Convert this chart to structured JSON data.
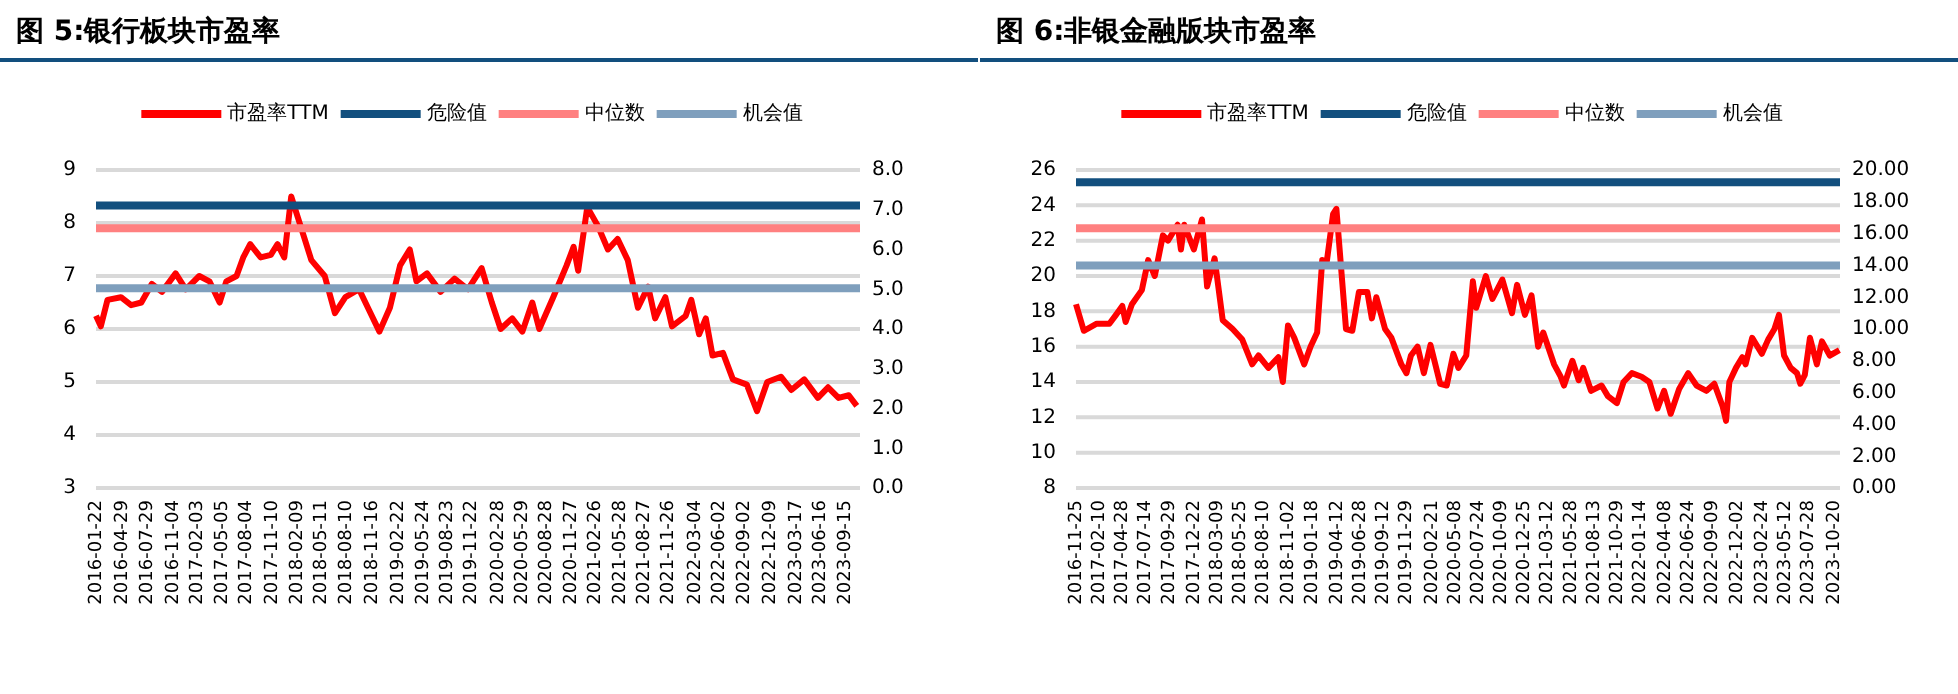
{
  "chart_data": [
    {
      "type": "line",
      "title": "图 5:银行板块市盈率",
      "grid": "y",
      "legend": "top",
      "xlim": [
        "2016-01-22",
        "2023-11-10"
      ],
      "xticks": [
        "2016-01-22",
        "2016-04-29",
        "2016-07-29",
        "2016-11-04",
        "2017-02-03",
        "2017-05-05",
        "2017-08-04",
        "2017-11-10",
        "2018-02-09",
        "2018-05-11",
        "2018-08-10",
        "2018-11-16",
        "2019-02-22",
        "2019-05-24",
        "2019-08-23",
        "2019-11-22",
        "2020-02-28",
        "2020-05-29",
        "2020-08-28",
        "2020-11-27",
        "2021-02-26",
        "2021-05-28",
        "2021-08-27",
        "2021-11-26",
        "2022-03-04",
        "2022-06-02",
        "2022-09-02",
        "2022-12-09",
        "2023-03-17",
        "2023-06-16",
        "2023-09-15"
      ],
      "ylim": [
        3,
        9
      ],
      "yticks": [
        3,
        4,
        5,
        6,
        7,
        8,
        9
      ],
      "y2lim": [
        0,
        8
      ],
      "y2ticks": [
        {
          "value": 0,
          "label": "0.0"
        },
        {
          "value": 1,
          "label": "1.0"
        },
        {
          "value": 2,
          "label": "2.0"
        },
        {
          "value": 3,
          "label": "3.0"
        },
        {
          "value": 4,
          "label": "4.0"
        },
        {
          "value": 5,
          "label": "5.0"
        },
        {
          "value": 6,
          "label": "6.0"
        },
        {
          "value": 7,
          "label": "7.0"
        },
        {
          "value": 8,
          "label": "8.0"
        }
      ],
      "ref_lines": [
        {
          "axis": "y",
          "value": 8.33,
          "label": "危险值",
          "color": "#124f7e"
        },
        {
          "axis": "y",
          "value": 7.9,
          "label": "中位数",
          "color": "#ff8080"
        },
        {
          "axis": "y",
          "value": 6.77,
          "label": "机会值",
          "color": "#7f9fbd"
        }
      ],
      "series": [
        {
          "name": "市盈率TTM",
          "color": "#ff0000",
          "x": [
            "2016-01-22",
            "2016-02-09",
            "2016-03-05",
            "2016-04-24",
            "2016-06-01",
            "2016-07-09",
            "2016-08-17",
            "2016-09-24",
            "2016-11-14",
            "2016-12-22",
            "2017-02-10",
            "2017-03-20",
            "2017-04-27",
            "2017-05-22",
            "2017-06-29",
            "2017-07-24",
            "2017-08-19",
            "2017-09-27",
            "2017-11-04",
            "2017-11-29",
            "2017-12-24",
            "2018-01-19",
            "2018-02-13",
            "2018-03-10",
            "2018-04-04",
            "2018-05-24",
            "2018-07-01",
            "2018-08-09",
            "2018-09-29",
            "2018-11-06",
            "2018-12-14",
            "2019-01-22",
            "2019-03-01",
            "2019-04-06",
            "2019-05-01",
            "2019-06-09",
            "2019-07-30",
            "2019-09-20",
            "2019-11-09",
            "2019-12-30",
            "2020-02-06",
            "2020-03-10",
            "2020-04-22",
            "2020-05-30",
            "2020-07-06",
            "2020-08-01",
            "2020-09-22",
            "2020-11-11",
            "2020-12-07",
            "2020-12-24",
            "2021-01-27",
            "2021-03-07",
            "2021-04-14",
            "2021-05-20",
            "2021-06-27",
            "2021-08-04",
            "2021-09-11",
            "2021-10-07",
            "2021-11-14",
            "2021-12-09",
            "2022-01-29",
            "2022-02-19",
            "2022-03-20",
            "2022-04-14",
            "2022-05-09",
            "2022-06-17",
            "2022-07-24",
            "2022-09-14",
            "2022-10-22",
            "2022-11-29",
            "2023-01-19",
            "2023-02-27",
            "2023-04-16",
            "2023-06-06",
            "2023-07-14",
            "2023-08-22",
            "2023-09-29",
            "2023-10-29"
          ],
          "values": [
            6.25,
            6.05,
            6.55,
            6.6,
            6.45,
            6.5,
            6.85,
            6.7,
            7.05,
            6.75,
            7.0,
            6.9,
            6.5,
            6.9,
            7.0,
            7.35,
            7.6,
            7.35,
            7.4,
            7.6,
            7.35,
            8.5,
            8.1,
            7.7,
            7.3,
            7.0,
            6.3,
            6.6,
            6.75,
            6.35,
            5.95,
            6.4,
            7.2,
            7.5,
            6.9,
            7.05,
            6.7,
            6.95,
            6.75,
            7.15,
            6.5,
            6.0,
            6.2,
            5.95,
            6.5,
            6.0,
            6.6,
            7.2,
            7.55,
            7.1,
            8.3,
            7.95,
            7.5,
            7.7,
            7.3,
            6.4,
            6.8,
            6.2,
            6.6,
            6.05,
            6.25,
            6.55,
            5.9,
            6.2,
            5.5,
            5.55,
            5.05,
            4.95,
            4.45,
            5.0,
            5.1,
            4.85,
            5.05,
            4.7,
            4.9,
            4.7,
            4.75,
            4.55
          ]
        }
      ]
    },
    {
      "type": "line",
      "title": "图 6:非银金融版块市盈率",
      "grid": "y",
      "legend": "top",
      "xlim": [
        "2016-11-25",
        "2023-11-10"
      ],
      "xticks": [
        "2016-11-25",
        "2017-02-10",
        "2017-04-28",
        "2017-07-14",
        "2017-09-29",
        "2017-12-22",
        "2018-03-09",
        "2018-05-25",
        "2018-08-10",
        "2018-11-02",
        "2019-01-18",
        "2019-04-12",
        "2019-06-28",
        "2019-09-12",
        "2019-11-29",
        "2020-02-21",
        "2020-05-08",
        "2020-07-24",
        "2020-10-09",
        "2020-12-25",
        "2021-03-12",
        "2021-05-28",
        "2021-08-13",
        "2021-10-29",
        "2022-01-14",
        "2022-04-08",
        "2022-06-24",
        "2022-09-09",
        "2022-12-02",
        "2023-02-24",
        "2023-05-12",
        "2023-07-28",
        "2023-10-20"
      ],
      "ylim": [
        8,
        26
      ],
      "yticks": [
        8,
        10,
        12,
        14,
        16,
        18,
        20,
        22,
        24,
        26
      ],
      "y2lim": [
        0,
        20
      ],
      "y2ticks": [
        {
          "value": 0,
          "label": "0.00"
        },
        {
          "value": 2,
          "label": "2.00"
        },
        {
          "value": 4,
          "label": "4.00"
        },
        {
          "value": 6,
          "label": "6.00"
        },
        {
          "value": 8,
          "label": "8.00"
        },
        {
          "value": 10,
          "label": "10.00"
        },
        {
          "value": 12,
          "label": "12.00"
        },
        {
          "value": 14,
          "label": "14.00"
        },
        {
          "value": 16,
          "label": "16.00"
        },
        {
          "value": 18,
          "label": "18.00"
        },
        {
          "value": 20,
          "label": "20.00"
        }
      ],
      "ref_lines": [
        {
          "axis": "y",
          "value": 25.3,
          "label": "危险值",
          "color": "#124f7e"
        },
        {
          "axis": "y",
          "value": 22.7,
          "label": "中位数",
          "color": "#ff8080"
        },
        {
          "axis": "y",
          "value": 20.6,
          "label": "机会值",
          "color": "#7f9fbd"
        }
      ],
      "series": [
        {
          "name": "市盈率TTM",
          "color": "#ff0000",
          "x": [
            "2016-11-25",
            "2016-12-21",
            "2017-02-02",
            "2017-03-16",
            "2017-04-07",
            "2017-04-28",
            "2017-05-09",
            "2017-05-30",
            "2017-07-02",
            "2017-07-23",
            "2017-08-14",
            "2017-09-10",
            "2017-09-27",
            "2017-10-29",
            "2017-11-09",
            "2017-11-20",
            "2017-12-22",
            "2018-01-18",
            "2018-02-04",
            "2018-03-01",
            "2018-03-28",
            "2018-04-30",
            "2018-06-01",
            "2018-07-04",
            "2018-07-25",
            "2018-08-27",
            "2018-09-29",
            "2018-10-14",
            "2018-10-31",
            "2018-11-21",
            "2018-12-24",
            "2019-01-14",
            "2019-02-05",
            "2019-02-22",
            "2019-03-09",
            "2019-03-30",
            "2019-04-10",
            "2019-05-12",
            "2019-06-02",
            "2019-06-24",
            "2019-07-22",
            "2019-08-06",
            "2019-08-21",
            "2019-09-19",
            "2019-10-10",
            "2019-11-12",
            "2019-11-29",
            "2019-12-14",
            "2020-01-05",
            "2020-01-26",
            "2020-02-17",
            "2020-03-20",
            "2020-04-11",
            "2020-05-03",
            "2020-05-20",
            "2020-06-15",
            "2020-07-07",
            "2020-07-18",
            "2020-08-19",
            "2020-09-10",
            "2020-10-13",
            "2020-11-14",
            "2020-12-01",
            "2020-12-27",
            "2021-01-18",
            "2021-02-09",
            "2021-02-26",
            "2021-04-03",
            "2021-04-25",
            "2021-05-06",
            "2021-06-03",
            "2021-06-24",
            "2021-07-09",
            "2021-08-04",
            "2021-09-08",
            "2021-09-29",
            "2021-10-29",
            "2021-11-20",
            "2021-12-18",
            "2022-01-19",
            "2022-02-14",
            "2022-03-13",
            "2022-04-04",
            "2022-04-26",
            "2022-05-24",
            "2022-06-23",
            "2022-07-21",
            "2022-08-23",
            "2022-09-18",
            "2022-10-16",
            "2022-10-27",
            "2022-11-07",
            "2022-11-29",
            "2022-12-20",
            "2022-12-31",
            "2023-01-22",
            "2023-02-23",
            "2023-03-16",
            "2023-04-06",
            "2023-04-21",
            "2023-05-08",
            "2023-05-30",
            "2023-06-20",
            "2023-07-01",
            "2023-07-16",
            "2023-08-02",
            "2023-08-25",
            "2023-09-11",
            "2023-10-07",
            "2023-11-08"
          ],
          "values": [
            18.4,
            16.9,
            17.3,
            17.3,
            17.8,
            18.3,
            17.4,
            18.4,
            19.2,
            20.9,
            20.0,
            22.3,
            22.0,
            22.9,
            21.5,
            22.9,
            21.5,
            23.2,
            19.4,
            21.0,
            17.5,
            17.0,
            16.4,
            15.0,
            15.5,
            14.8,
            15.4,
            14.0,
            17.2,
            16.5,
            15.0,
            16.0,
            16.8,
            20.9,
            20.8,
            23.5,
            23.8,
            17.0,
            16.9,
            19.1,
            19.1,
            17.6,
            18.8,
            17.0,
            16.5,
            15.0,
            14.5,
            15.5,
            16.0,
            14.5,
            16.1,
            13.9,
            13.8,
            15.6,
            14.8,
            15.5,
            19.7,
            18.2,
            20.0,
            18.7,
            19.8,
            17.9,
            19.5,
            17.8,
            18.9,
            16.0,
            16.8,
            15.0,
            14.3,
            13.8,
            15.2,
            14.1,
            14.8,
            13.5,
            13.8,
            13.2,
            12.8,
            14.0,
            14.5,
            14.3,
            14.0,
            12.5,
            13.5,
            12.2,
            13.6,
            14.5,
            13.8,
            13.5,
            13.9,
            12.6,
            11.8,
            14.0,
            14.8,
            15.4,
            15.0,
            16.5,
            15.6,
            16.4,
            17.0,
            17.8,
            15.5,
            14.8,
            14.5,
            13.9,
            14.4,
            16.5,
            15.0,
            16.3,
            15.5,
            15.8
          ]
        }
      ]
    }
  ]
}
